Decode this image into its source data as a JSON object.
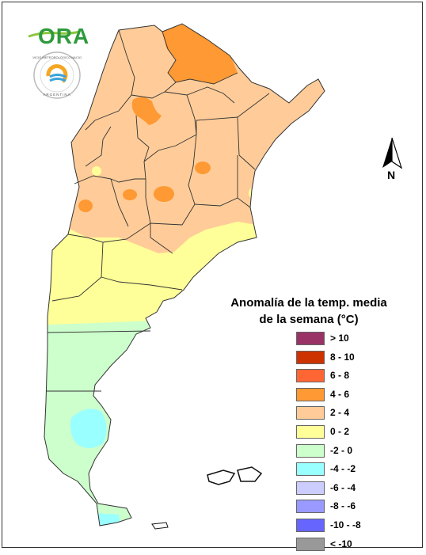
{
  "logo": {
    "text": "ORA"
  },
  "badge": {
    "top_text": "SERVICIO METEOROLÓGICO NACIONAL",
    "bottom_text": "ARGENTINA"
  },
  "north": {
    "label": "N"
  },
  "legend": {
    "title_line1": "Anomalía de la temp. media",
    "title_line2": "de la semana (°C)",
    "items": [
      {
        "label": "> 10",
        "color": "#993366"
      },
      {
        "label": "8 - 10",
        "color": "#cc3300"
      },
      {
        "label": "6 - 8",
        "color": "#ff6633"
      },
      {
        "label": "4 - 6",
        "color": "#ff9933"
      },
      {
        "label": "2 - 4",
        "color": "#ffcc99"
      },
      {
        "label": "0 - 2",
        "color": "#ffff99"
      },
      {
        "label": "-2 - 0",
        "color": "#ccffcc"
      },
      {
        "label": "-4 - -2",
        "color": "#99ffff"
      },
      {
        "label": "-6 - -4",
        "color": "#ccccff"
      },
      {
        "label": "-8 - -6",
        "color": "#9999ff"
      },
      {
        "label": "-10 - -8",
        "color": "#6666ff"
      },
      {
        "label": "< -10",
        "color": "#999999"
      }
    ]
  }
}
